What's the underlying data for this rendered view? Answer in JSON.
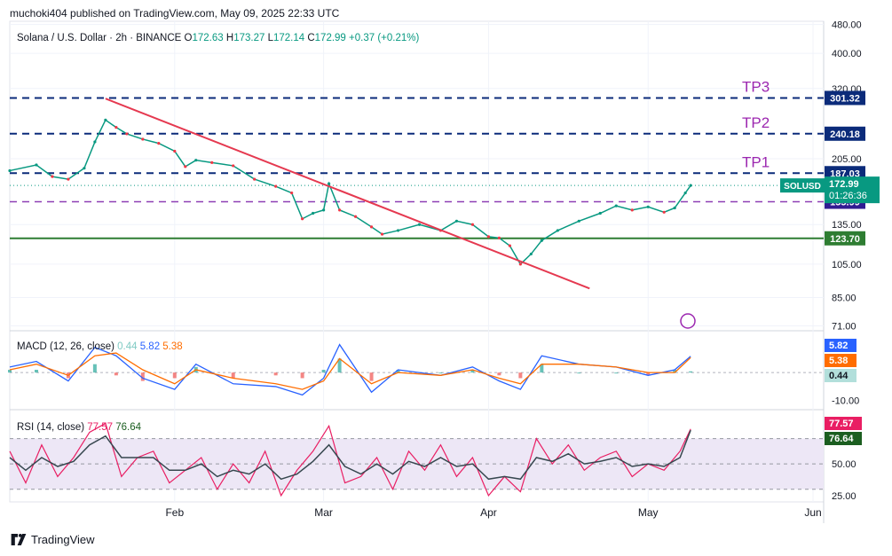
{
  "header": {
    "published": "muchoki404 published on TradingView.com, May 09, 2025 22:33 UTC"
  },
  "footer": {
    "brand": "TradingView",
    "logo_icon": "tradingview-logo-icon"
  },
  "legend": {
    "symbol": "Solana / U.S. Dollar · 2h · BINANCE",
    "o_label": "O",
    "o": "172.63",
    "h_label": "H",
    "h": "173.27",
    "l_label": "L",
    "l": "172.14",
    "c_label": "C",
    "c": "172.99",
    "change": "+0.37 (+0.21%)"
  },
  "colors": {
    "up": "#089981",
    "down": "#f23645",
    "dashed_blue": "#0b2b7a",
    "dashed_purple": "#8e3fb5",
    "support_green": "#2e7d32",
    "trendline": "#e53950",
    "tp_text": "#9c27b0",
    "macd_line": "#2962ff",
    "signal_line": "#ff6d00",
    "rsi_line": "#7e57c2",
    "rsi_band": "#ede7f6"
  },
  "chart_data": [
    {
      "type": "line",
      "pane": "price",
      "title": "Solana / U.S. Dollar · 2h · BINANCE",
      "scale": "log",
      "ylim": [
        70,
        490
      ],
      "y_ticks": [
        "480.00",
        "400.00",
        "320.00",
        "205.00",
        "135.00",
        "105.00",
        "85.00",
        "71.00"
      ],
      "x_ticks": [
        "Feb",
        "Mar",
        "Apr",
        "May",
        "Jun"
      ],
      "x_dates": [
        "2025-01-01",
        "2025-01-06",
        "2025-01-09",
        "2025-01-12",
        "2025-01-15",
        "2025-01-17",
        "2025-01-19",
        "2025-01-21",
        "2025-01-23",
        "2025-01-26",
        "2025-01-29",
        "2025-02-01",
        "2025-02-03",
        "2025-02-05",
        "2025-02-08",
        "2025-02-12",
        "2025-02-16",
        "2025-02-20",
        "2025-02-23",
        "2025-02-25",
        "2025-02-27",
        "2025-03-01",
        "2025-03-02",
        "2025-03-04",
        "2025-03-07",
        "2025-03-10",
        "2025-03-12",
        "2025-03-15",
        "2025-03-19",
        "2025-03-23",
        "2025-03-26",
        "2025-03-29",
        "2025-04-01",
        "2025-04-03",
        "2025-04-05",
        "2025-04-07",
        "2025-04-09",
        "2025-04-11",
        "2025-04-14",
        "2025-04-18",
        "2025-04-22",
        "2025-04-25",
        "2025-04-28",
        "2025-05-01",
        "2025-05-04",
        "2025-05-06",
        "2025-05-08",
        "2025-05-09"
      ],
      "values": [
        190,
        197,
        183,
        180,
        193,
        228,
        262,
        250,
        240,
        232,
        226,
        215,
        195,
        203,
        200,
        196,
        180,
        172,
        165,
        140,
        145,
        148,
        175,
        148,
        142,
        133,
        127,
        130,
        135,
        130,
        138,
        135,
        125,
        124,
        118,
        105,
        112,
        122,
        130,
        138,
        145,
        152,
        148,
        151,
        146,
        150,
        165,
        172.99
      ],
      "levels": [
        {
          "label": "TP3",
          "value": "301.32",
          "style": "dashed-blue"
        },
        {
          "label": "TP2",
          "value": "240.18",
          "style": "dashed-blue"
        },
        {
          "label": "TP1",
          "value": "187.03",
          "style": "dashed-blue"
        },
        {
          "label": "",
          "value": "155.99",
          "style": "dashed-purple"
        },
        {
          "label": "",
          "value": "123.70",
          "style": "solid-green"
        }
      ],
      "trendline": {
        "from": {
          "date": "2025-01-19",
          "price": 300
        },
        "to": {
          "date": "2025-04-20",
          "price": 90
        }
      },
      "price_tag": {
        "symbol": "SOLUSD",
        "price": "172.99",
        "countdown": "01:26:36"
      }
    },
    {
      "type": "line",
      "pane": "macd",
      "title": "MACD (12, 26, close)",
      "values_label": {
        "hist": "0.44",
        "macd": "5.82",
        "signal": "5.38"
      },
      "y_ticks": [
        "-10.00"
      ],
      "ylim": [
        -12,
        14
      ],
      "x_dates": [
        "2025-01-01",
        "2025-01-06",
        "2025-01-12",
        "2025-01-17",
        "2025-01-21",
        "2025-01-26",
        "2025-02-01",
        "2025-02-05",
        "2025-02-12",
        "2025-02-20",
        "2025-02-25",
        "2025-03-01",
        "2025-03-04",
        "2025-03-10",
        "2025-03-15",
        "2025-03-23",
        "2025-03-29",
        "2025-04-03",
        "2025-04-07",
        "2025-04-11",
        "2025-04-18",
        "2025-04-25",
        "2025-05-01",
        "2025-05-06",
        "2025-05-09"
      ],
      "series": [
        {
          "name": "MACD",
          "values": [
            2,
            4,
            -3,
            9,
            6,
            -2,
            -6,
            3,
            -4,
            -5,
            -8,
            -2,
            10,
            -7,
            1,
            -1,
            2,
            -3,
            -6,
            6,
            3,
            2,
            -1,
            1,
            5.82
          ]
        },
        {
          "name": "Signal",
          "values": [
            1,
            3,
            -1,
            6,
            7,
            1,
            -4,
            1,
            -2,
            -4,
            -6,
            -3,
            5,
            -4,
            0,
            -1,
            1,
            -2,
            -4,
            3,
            3,
            2,
            0,
            0,
            5.38
          ]
        }
      ]
    },
    {
      "type": "line",
      "pane": "rsi",
      "title": "RSI (14, close)",
      "values_label": {
        "rsi": "77.57",
        "ma": "76.64"
      },
      "y_ticks": [
        "50.00",
        "25.00"
      ],
      "ylim": [
        20,
        90
      ],
      "band": [
        30,
        70
      ],
      "x_dates": [
        "2025-01-01",
        "2025-01-04",
        "2025-01-07",
        "2025-01-10",
        "2025-01-13",
        "2025-01-16",
        "2025-01-19",
        "2025-01-22",
        "2025-01-25",
        "2025-01-28",
        "2025-01-31",
        "2025-02-03",
        "2025-02-06",
        "2025-02-09",
        "2025-02-12",
        "2025-02-15",
        "2025-02-18",
        "2025-02-21",
        "2025-02-24",
        "2025-02-27",
        "2025-03-02",
        "2025-03-05",
        "2025-03-08",
        "2025-03-11",
        "2025-03-14",
        "2025-03-17",
        "2025-03-20",
        "2025-03-23",
        "2025-03-26",
        "2025-03-29",
        "2025-04-01",
        "2025-04-04",
        "2025-04-07",
        "2025-04-10",
        "2025-04-13",
        "2025-04-16",
        "2025-04-19",
        "2025-04-22",
        "2025-04-25",
        "2025-04-28",
        "2025-05-01",
        "2025-05-04",
        "2025-05-07",
        "2025-05-09"
      ],
      "series": [
        {
          "name": "RSI",
          "values": [
            60,
            35,
            65,
            40,
            55,
            75,
            82,
            40,
            55,
            60,
            35,
            45,
            55,
            30,
            50,
            35,
            60,
            25,
            45,
            60,
            80,
            35,
            40,
            55,
            30,
            60,
            45,
            65,
            40,
            55,
            25,
            40,
            28,
            70,
            50,
            65,
            45,
            55,
            60,
            40,
            50,
            45,
            60,
            77.57
          ]
        },
        {
          "name": "MA",
          "values": [
            55,
            45,
            55,
            48,
            52,
            65,
            72,
            55,
            55,
            55,
            45,
            45,
            50,
            40,
            45,
            42,
            50,
            38,
            42,
            52,
            65,
            48,
            42,
            50,
            42,
            52,
            48,
            55,
            48,
            50,
            38,
            40,
            38,
            55,
            52,
            58,
            50,
            52,
            55,
            48,
            50,
            48,
            55,
            76.64
          ]
        }
      ]
    }
  ]
}
